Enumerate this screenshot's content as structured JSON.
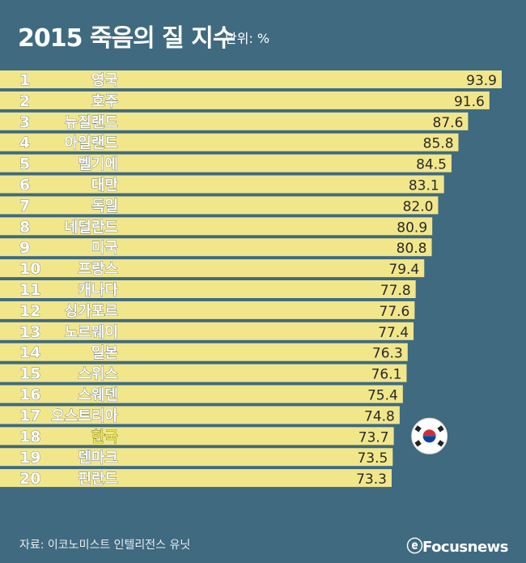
{
  "header": {
    "title": "2015 죽음의 질 지수",
    "unit": "단위: %"
  },
  "footer": {
    "source": "자료: 이코노미스트 인텔리전스 유닛",
    "brand": "Focusnews"
  },
  "colors": {
    "background": "#3f6a80",
    "bar": "#f1e68a",
    "rank_text": "#ffffff",
    "country_text": "#ffffff",
    "highlight_text": "#f7ea45",
    "value_text": "#2a2a2a"
  },
  "icons": {
    "highlight_marker": "korea-flag-icon",
    "brand_logo": "focusnews-logo-icon"
  },
  "chart_data": {
    "type": "bar",
    "orientation": "horizontal",
    "title": "2015 죽음의 질 지수",
    "unit": "단위: %",
    "xlim": [
      0,
      100
    ],
    "grid": false,
    "highlight": "한국",
    "ranks": [
      "1",
      "2",
      "3",
      "4",
      "5",
      "6",
      "7",
      "8",
      "9",
      "10",
      "11",
      "12",
      "13",
      "14",
      "15",
      "16",
      "17",
      "18",
      "19",
      "20"
    ],
    "categories": [
      "영국",
      "호주",
      "뉴질랜드",
      "아일랜드",
      "벨기에",
      "대만",
      "독일",
      "네덜란드",
      "미국",
      "프랑스",
      "캐나다",
      "싱가포르",
      "노르웨이",
      "일본",
      "스위스",
      "스웨덴",
      "오스트리아",
      "한국",
      "덴마크",
      "핀란드"
    ],
    "values": [
      93.9,
      91.6,
      87.6,
      85.8,
      84.5,
      83.1,
      82.0,
      80.9,
      80.8,
      79.4,
      77.8,
      77.6,
      77.4,
      76.3,
      76.1,
      75.4,
      74.8,
      73.7,
      73.5,
      73.3
    ],
    "value_labels": [
      "93.9",
      "91.6",
      "87.6",
      "85.8",
      "84.5",
      "83.1",
      "82.0",
      "80.9",
      "80.8",
      "79.4",
      "77.8",
      "77.6",
      "77.4",
      "76.3",
      "76.1",
      "75.4",
      "74.8",
      "73.7",
      "73.5",
      "73.3"
    ]
  }
}
